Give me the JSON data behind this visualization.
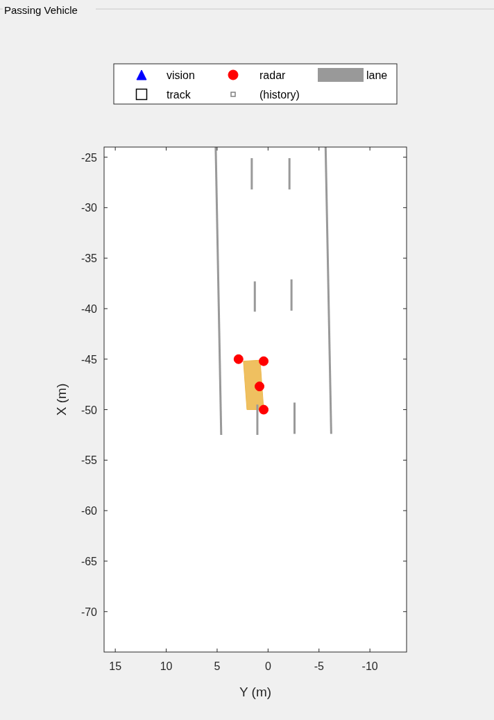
{
  "chart_data": {
    "type": "scatter",
    "title": "Passing Vehicle",
    "xlabel": "Y (m)",
    "ylabel": "X (m)",
    "xlim": [
      16.1,
      -13.6
    ],
    "xticks": [
      15,
      10,
      5,
      0,
      -5,
      -10
    ],
    "ylim": [
      -74,
      -24
    ],
    "yticks": [
      -25,
      -30,
      -35,
      -40,
      -45,
      -50,
      -55,
      -60,
      -65,
      -70
    ],
    "grid": false,
    "legend": "top",
    "series": [
      {
        "name": "vision",
        "marker": "triangle",
        "color": "#0000ff"
      },
      {
        "name": "radar",
        "marker": "circle",
        "color": "#ff0000",
        "x": [
          2.9,
          0.43,
          0.84,
          0.43
        ],
        "values": [
          -45.0,
          -45.2,
          -47.7,
          -50.0
        ]
      },
      {
        "name": "lane",
        "type": "line",
        "color": "#999999",
        "x": [
          5.14,
          4.6
        ],
        "values": [
          -24,
          -52.5
        ]
      },
      {
        "type": "line",
        "color": "#999999",
        "x": [
          -5.65,
          -6.2
        ],
        "values": [
          -24,
          -52.4
        ]
      },
      {
        "type": "line",
        "color": "#999999",
        "x": [
          1.6,
          1.6
        ],
        "values": [
          -25.1,
          -28.2
        ]
      },
      {
        "type": "line",
        "color": "#999999",
        "x": [
          1.3,
          1.3
        ],
        "values": [
          -37.3,
          -40.3
        ]
      },
      {
        "type": "line",
        "color": "#999999",
        "x": [
          1.05,
          1.05
        ],
        "values": [
          -49.5,
          -52.5
        ]
      },
      {
        "type": "line",
        "color": "#999999",
        "x": [
          -2.1,
          -2.1
        ],
        "values": [
          -25.1,
          -28.2
        ]
      },
      {
        "type": "line",
        "color": "#999999",
        "x": [
          -2.3,
          -2.3
        ],
        "values": [
          -37.1,
          -40.2
        ]
      },
      {
        "type": "line",
        "color": "#999999",
        "x": [
          -2.6,
          -2.6
        ],
        "values": [
          -49.3,
          -52.4
        ]
      },
      {
        "type": "area",
        "color": "#edb94f",
        "x": [
          2.42,
          0.78,
          0.43,
          2.07
        ],
        "values": [
          -45.2,
          -45.1,
          -50.0,
          -50.0
        ]
      },
      {
        "name": "track",
        "marker": "square",
        "color": "#000000"
      },
      {
        "name": "(history)",
        "marker": "square",
        "color": "#808080"
      }
    ]
  }
}
